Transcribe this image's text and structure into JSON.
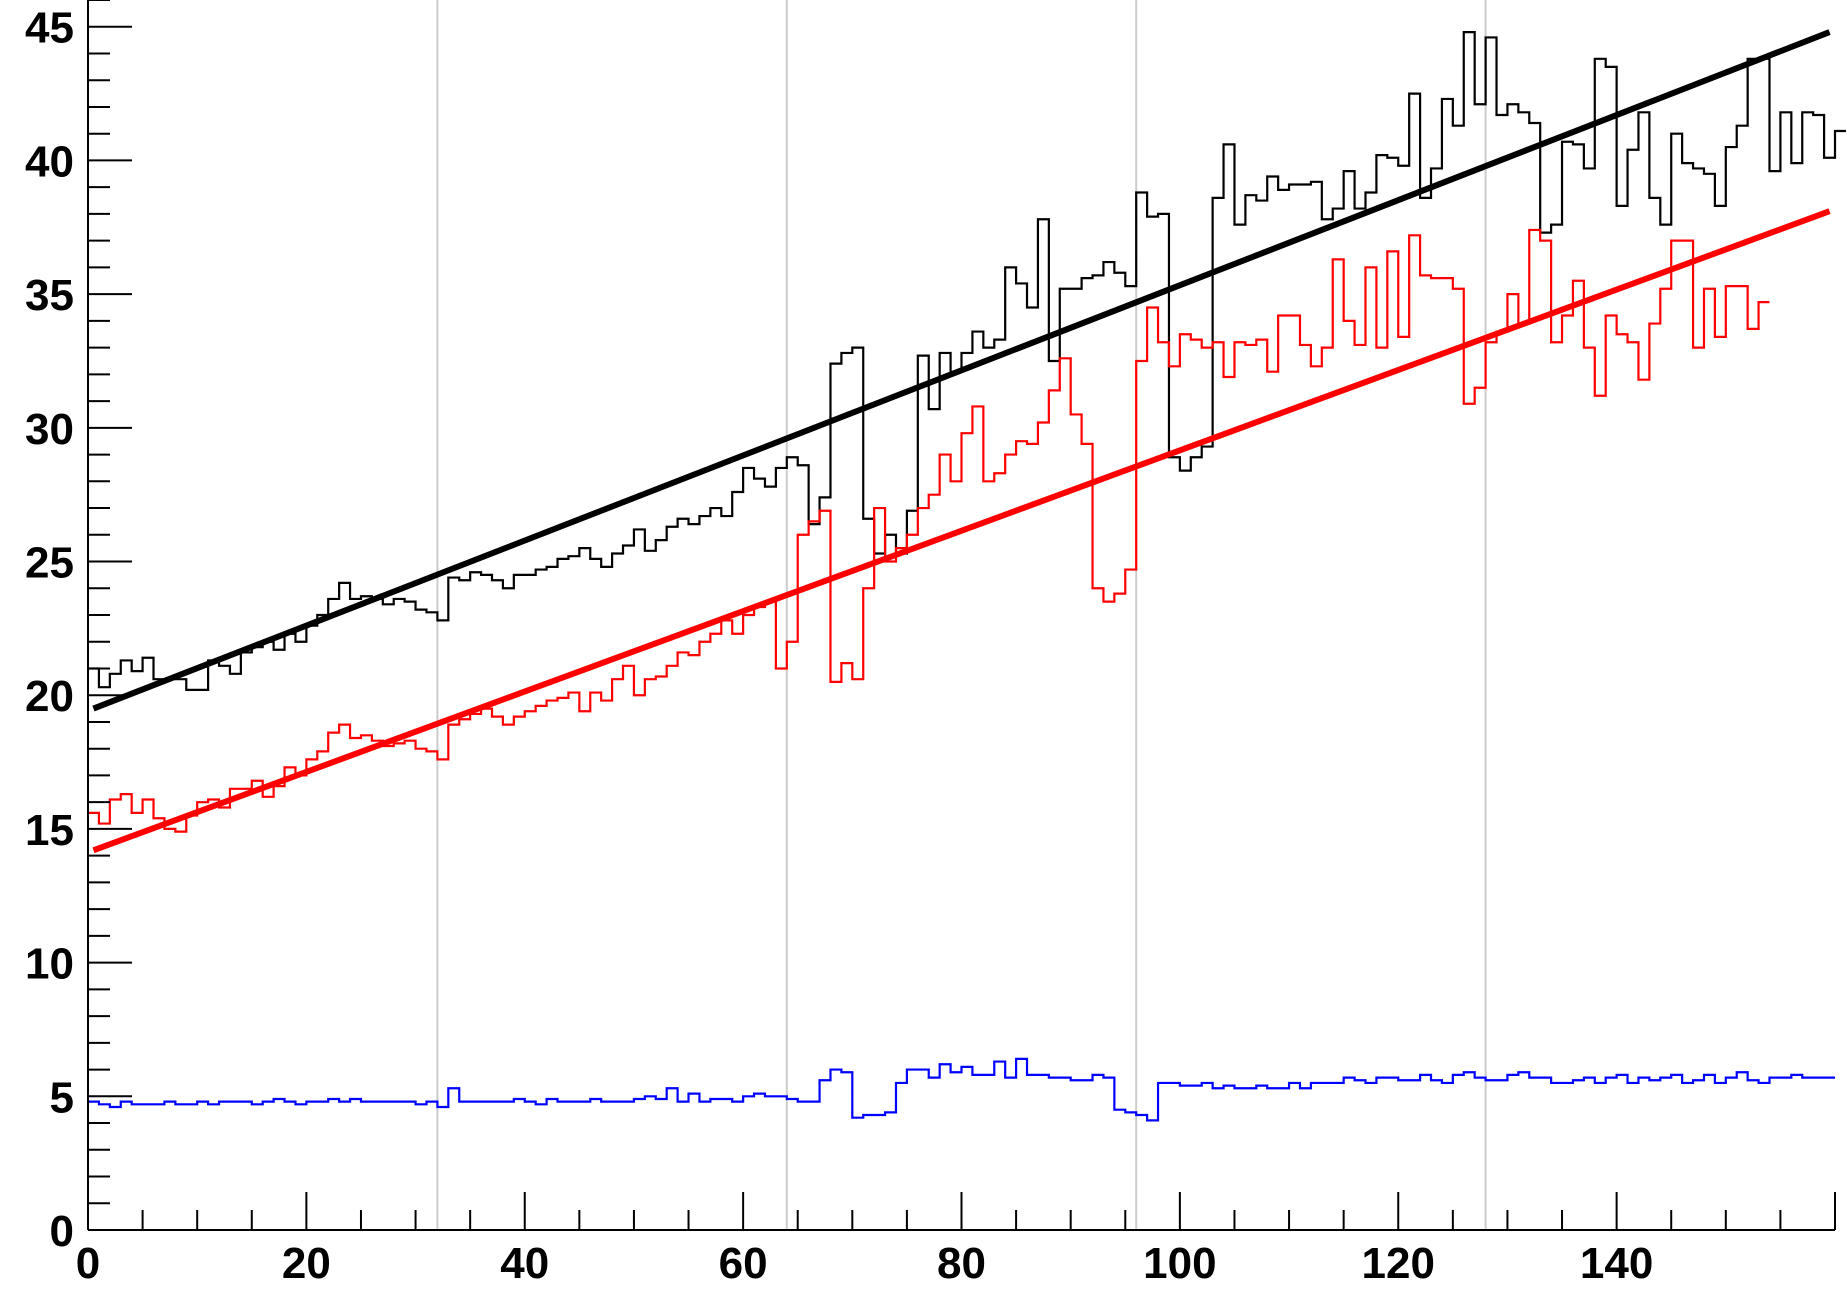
{
  "chart_data": {
    "type": "line",
    "title": "",
    "xlabel": "",
    "ylabel": "",
    "xlim": [
      0,
      160
    ],
    "ylim": [
      0,
      46
    ],
    "x_ticks": [
      "0",
      "20",
      "40",
      "60",
      "80",
      "100",
      "120",
      "140"
    ],
    "y_ticks": [
      "0",
      "5",
      "10",
      "15",
      "20",
      "25",
      "30",
      "35",
      "40",
      "45"
    ],
    "grid": "vertical lines at x = 32, 64, 96, 128",
    "grid_x": [
      32,
      64,
      96,
      128
    ],
    "bin_width": 1,
    "series": [
      {
        "style": "step",
        "color": "#000000",
        "values": [
          21.0,
          20.3,
          20.8,
          21.3,
          20.9,
          21.4,
          20.6,
          20.6,
          20.6,
          20.2,
          20.2,
          21.3,
          21.1,
          20.8,
          21.6,
          21.8,
          22.0,
          21.7,
          22.3,
          22.0,
          22.6,
          23.0,
          23.6,
          24.2,
          23.6,
          23.7,
          23.6,
          23.4,
          23.6,
          23.5,
          23.2,
          23.1,
          22.8,
          24.4,
          24.3,
          24.6,
          24.5,
          24.3,
          24.0,
          24.5,
          24.5,
          24.7,
          24.8,
          25.1,
          25.2,
          25.5,
          25.1,
          24.8,
          25.3,
          25.6,
          26.2,
          25.4,
          25.8,
          26.3,
          26.6,
          26.4,
          26.7,
          27.0,
          26.7,
          27.6,
          28.5,
          28.1,
          27.8,
          28.5,
          28.9,
          28.6,
          26.4,
          27.4,
          32.4,
          32.8,
          33.0,
          26.6,
          25.3,
          26.0,
          25.3,
          26.9,
          32.7,
          30.7,
          32.8,
          32.1,
          32.8,
          33.6,
          33.0,
          33.3,
          36.0,
          35.4,
          34.5,
          37.8,
          32.5,
          35.2,
          35.2,
          35.6,
          35.7,
          36.2,
          35.8,
          35.3,
          38.8,
          37.9,
          38.0,
          28.9,
          28.4,
          28.9,
          29.3,
          38.6,
          40.6,
          37.6,
          38.7,
          38.5,
          39.4,
          38.9,
          39.1,
          39.1,
          39.2,
          37.8,
          38.2,
          39.6,
          38.2,
          38.8,
          40.2,
          40.1,
          39.8,
          42.5,
          38.6,
          39.7,
          42.3,
          41.3,
          44.8,
          42.1,
          44.6,
          41.7,
          42.1,
          41.8,
          41.4,
          37.3,
          37.6,
          40.7,
          40.6,
          39.7,
          43.8,
          43.5,
          38.3,
          40.4,
          41.8,
          38.6,
          37.6,
          41.0,
          39.9,
          39.7,
          39.5,
          38.3,
          40.5,
          41.3,
          43.8,
          43.8,
          39.6,
          41.8,
          39.9,
          41.8,
          41.7,
          40.1,
          41.1
        ]
      },
      {
        "style": "step",
        "color": "#ff0000",
        "values": [
          15.6,
          15.2,
          16.1,
          16.3,
          15.6,
          16.1,
          15.4,
          15.0,
          14.9,
          15.5,
          16.0,
          16.1,
          15.8,
          16.5,
          16.5,
          16.8,
          16.2,
          16.6,
          17.3,
          17.0,
          17.6,
          17.9,
          18.6,
          18.9,
          18.4,
          18.5,
          18.3,
          18.1,
          18.2,
          18.3,
          18.0,
          17.9,
          17.6,
          18.9,
          19.1,
          19.3,
          19.5,
          19.2,
          18.9,
          19.2,
          19.4,
          19.6,
          19.8,
          19.9,
          20.1,
          19.4,
          20.1,
          19.8,
          20.6,
          21.1,
          20.0,
          20.6,
          20.7,
          21.1,
          21.6,
          21.5,
          22.0,
          22.3,
          22.8,
          22.3,
          23.0,
          23.3,
          23.5,
          21.0,
          22.0,
          26.0,
          26.5,
          26.9,
          20.5,
          21.2,
          20.6,
          24.0,
          27.0,
          25.0,
          25.5,
          26.0,
          27.0,
          27.5,
          29.0,
          28.0,
          29.8,
          30.8,
          28.0,
          28.3,
          29.0,
          29.5,
          29.4,
          30.2,
          31.4,
          32.6,
          30.5,
          29.4,
          24.0,
          23.5,
          23.8,
          24.7,
          32.5,
          34.5,
          33.2,
          32.3,
          33.5,
          33.3,
          33.0,
          33.2,
          31.9,
          33.2,
          33.1,
          33.3,
          32.1,
          34.2,
          34.2,
          33.1,
          32.3,
          33.0,
          36.3,
          34.0,
          33.1,
          36.0,
          33.0,
          36.6,
          33.4,
          37.2,
          35.7,
          35.6,
          35.6,
          35.2,
          30.9,
          31.5,
          33.2,
          33.6,
          35.0,
          33.9,
          37.4,
          37.0,
          33.2,
          34.2,
          35.5,
          33.0,
          31.2,
          34.2,
          33.5,
          33.2,
          31.8,
          33.9,
          35.2,
          37.0,
          37.0,
          33.0,
          35.2,
          33.4,
          35.3,
          35.3,
          33.7,
          34.7
        ]
      },
      {
        "style": "step",
        "color": "#0000ff",
        "values": [
          4.8,
          4.7,
          4.6,
          4.8,
          4.7,
          4.7,
          4.7,
          4.8,
          4.7,
          4.7,
          4.8,
          4.7,
          4.8,
          4.8,
          4.8,
          4.7,
          4.8,
          4.9,
          4.8,
          4.7,
          4.8,
          4.8,
          4.9,
          4.8,
          4.9,
          4.8,
          4.8,
          4.8,
          4.8,
          4.8,
          4.7,
          4.8,
          4.6,
          5.3,
          4.8,
          4.8,
          4.8,
          4.8,
          4.8,
          4.9,
          4.8,
          4.7,
          4.9,
          4.8,
          4.8,
          4.8,
          4.9,
          4.8,
          4.8,
          4.8,
          4.9,
          5.0,
          4.9,
          5.3,
          4.8,
          5.1,
          4.8,
          4.9,
          4.9,
          4.8,
          5.0,
          5.1,
          5.0,
          5.0,
          4.9,
          4.8,
          4.8,
          5.6,
          6.0,
          5.9,
          4.2,
          4.3,
          4.3,
          4.4,
          5.5,
          6.0,
          6.0,
          5.7,
          6.2,
          5.9,
          6.1,
          5.8,
          5.8,
          6.3,
          5.7,
          6.4,
          5.8,
          5.8,
          5.7,
          5.7,
          5.6,
          5.6,
          5.8,
          5.7,
          4.5,
          4.4,
          4.3,
          4.1,
          5.5,
          5.5,
          5.4,
          5.4,
          5.5,
          5.3,
          5.4,
          5.3,
          5.3,
          5.4,
          5.3,
          5.3,
          5.5,
          5.3,
          5.5,
          5.5,
          5.5,
          5.7,
          5.6,
          5.5,
          5.7,
          5.7,
          5.6,
          5.6,
          5.8,
          5.6,
          5.5,
          5.8,
          5.9,
          5.7,
          5.6,
          5.6,
          5.8,
          5.9,
          5.7,
          5.7,
          5.5,
          5.5,
          5.6,
          5.7,
          5.5,
          5.7,
          5.8,
          5.5,
          5.7,
          5.6,
          5.7,
          5.8,
          5.5,
          5.6,
          5.8,
          5.5,
          5.7,
          5.9,
          5.6,
          5.5,
          5.7,
          5.7,
          5.8,
          5.7,
          5.7,
          5.7
        ]
      },
      {
        "style": "fit-line",
        "color": "#000000",
        "x": [
          0.5,
          159.5
        ],
        "values": [
          19.5,
          44.8
        ]
      },
      {
        "style": "fit-line",
        "color": "#ff0000",
        "x": [
          0.5,
          159.5
        ],
        "values": [
          14.2,
          38.1
        ]
      }
    ]
  }
}
